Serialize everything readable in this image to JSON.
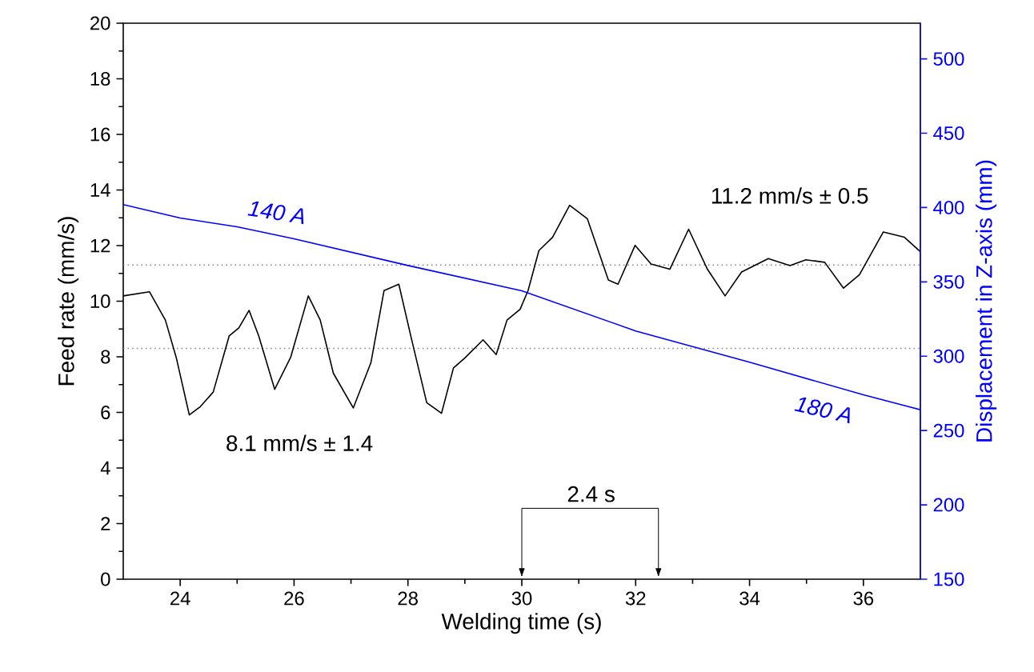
{
  "chart_data": {
    "type": "line",
    "xlabel": "Welding time (s)",
    "ylabel": "Feed rate (mm/s)",
    "y2label": "Displacement in Z-axis (mm)",
    "xlim": [
      23,
      37
    ],
    "xticks": [
      24,
      26,
      28,
      30,
      32,
      34,
      36
    ],
    "ylim": [
      0,
      20
    ],
    "yticks": [
      0,
      2,
      4,
      6,
      8,
      10,
      12,
      14,
      16,
      18,
      20
    ],
    "y2lim": [
      150,
      524
    ],
    "y2ticks": [
      150,
      200,
      250,
      300,
      350,
      400,
      450,
      500
    ],
    "grid": false,
    "legend": false,
    "marker": "none",
    "line_style": "solid",
    "series": [
      {
        "color": "#000000",
        "x": [
          23.0,
          23.46,
          23.74,
          23.93,
          24.16,
          24.35,
          24.58,
          24.86,
          25.03,
          25.21,
          25.38,
          25.66,
          25.94,
          26.25,
          26.46,
          26.69,
          27.04,
          27.35,
          27.58,
          27.84,
          28.05,
          28.33,
          28.59,
          28.8,
          28.99,
          29.32,
          29.55,
          29.74,
          29.97,
          30.11,
          30.3,
          30.54,
          30.84,
          31.15,
          31.52,
          31.69,
          31.99,
          32.27,
          32.6,
          32.93,
          33.26,
          33.57,
          33.86,
          34.33,
          34.71,
          34.99,
          35.32,
          35.65,
          35.93,
          36.35,
          36.72,
          37.0
        ],
        "values": [
          10.19,
          10.34,
          9.32,
          7.98,
          5.91,
          6.2,
          6.73,
          8.75,
          9.04,
          9.67,
          8.75,
          6.83,
          7.98,
          10.19,
          9.32,
          7.41,
          6.16,
          7.79,
          10.38,
          10.61,
          8.75,
          6.35,
          5.97,
          7.6,
          7.94,
          8.61,
          8.08,
          9.32,
          9.71,
          10.38,
          11.82,
          12.3,
          13.45,
          12.97,
          10.76,
          10.61,
          12.01,
          11.34,
          11.15,
          12.59,
          11.15,
          10.19,
          11.05,
          11.53,
          11.28,
          11.49,
          11.4,
          10.47,
          10.95,
          12.49,
          12.3,
          11.78
        ]
      },
      {
        "color": "#0000ff",
        "axis": "y2",
        "x": [
          23,
          24,
          25,
          26,
          28,
          30,
          32,
          34,
          36,
          37
        ],
        "values": [
          402,
          393,
          387,
          379,
          361,
          344,
          317,
          296,
          274,
          264
        ]
      }
    ],
    "ref_lines": [
      {
        "axis": "y",
        "value": 11.3,
        "color": "#888888",
        "line_style": "dotted"
      },
      {
        "axis": "y",
        "value": 8.3,
        "color": "#888888",
        "line_style": "dotted"
      }
    ],
    "annotations": [
      "140 A",
      "180 A",
      "8.1 mm/s ± 1.4",
      "11.2 mm/s ± 0.5",
      "2.4 s"
    ]
  }
}
